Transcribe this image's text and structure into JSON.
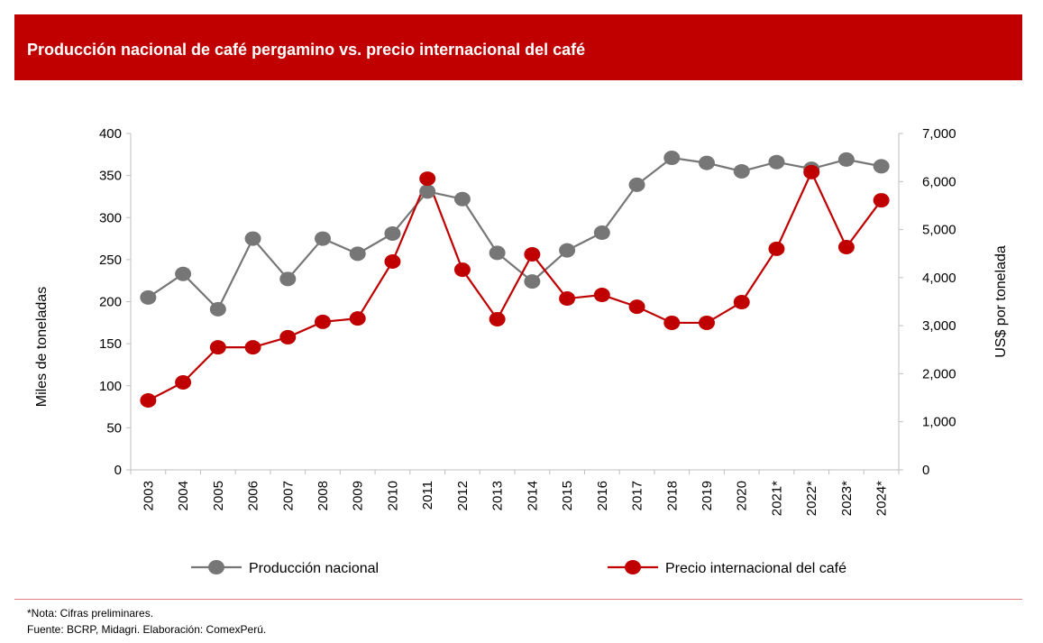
{
  "header": {
    "title": "Producción nacional de café pergamino vs. precio internacional del café"
  },
  "footer": {
    "note": "*Nota: Cifras preliminares.",
    "source": "Fuente: BCRP, Midagri. Elaboración: ComexPerú."
  },
  "colors": {
    "title_bg": "#c00000",
    "production": "#767676",
    "price": "#c00000",
    "axis": "#bfbfbf"
  },
  "chart_data": {
    "type": "line",
    "title": "Producción nacional de café pergamino vs. precio internacional del café",
    "categories": [
      "2003",
      "2004",
      "2005",
      "2006",
      "2007",
      "2008",
      "2009",
      "2010",
      "2011",
      "2012",
      "2013",
      "2014",
      "2015",
      "2016",
      "2017",
      "2018",
      "2019",
      "2020",
      "2021*",
      "2022*",
      "2023*",
      "2024*"
    ],
    "series": [
      {
        "name": "Producción nacional",
        "axis": "left",
        "values": [
          205,
          233,
          191,
          275,
          227,
          275,
          257,
          281,
          331,
          322,
          258,
          224,
          261,
          282,
          339,
          371,
          365,
          355,
          366,
          358,
          369,
          361
        ]
      },
      {
        "name": "Precio internacional del café",
        "axis": "right",
        "values": [
          1445,
          1820,
          2550,
          2550,
          2760,
          3080,
          3150,
          4335,
          6060,
          4165,
          3135,
          4485,
          3565,
          3640,
          3395,
          3060,
          3060,
          3490,
          4600,
          6195,
          4635,
          5610
        ]
      }
    ],
    "ylabel": "Miles de toneladas",
    "ylim": [
      0,
      400
    ],
    "yticks": [
      "0",
      "50",
      "100",
      "150",
      "200",
      "250",
      "300",
      "350",
      "400"
    ],
    "y2label": "US$ por tonelada",
    "y2lim": [
      0,
      7000
    ],
    "y2ticks": [
      "0",
      "1,000",
      "2,000",
      "3,000",
      "4,000",
      "5,000",
      "6,000",
      "7,000"
    ],
    "xlabel": "",
    "grid": false,
    "legend": "bottom"
  }
}
